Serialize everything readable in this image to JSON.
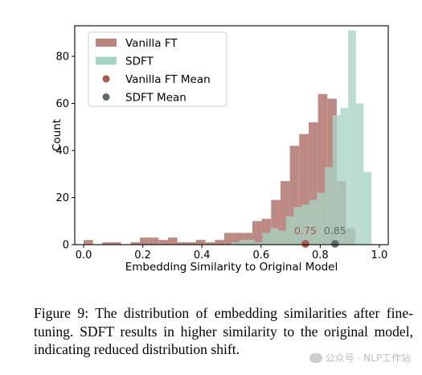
{
  "chart_data": {
    "type": "histogram",
    "xlabel": "Embedding Similarity to Original Model",
    "ylabel": "Count",
    "xlim": [
      -0.03,
      1.03
    ],
    "ylim": [
      0,
      93
    ],
    "xticks": [
      0.0,
      0.2,
      0.4,
      0.6,
      0.8,
      1.0
    ],
    "xtick_labels": [
      "0.0",
      "0.2",
      "0.4",
      "0.6",
      "0.8",
      "1.0"
    ],
    "yticks": [
      0,
      20,
      40,
      60,
      80
    ],
    "ytick_labels": [
      "0",
      "20",
      "40",
      "60",
      "80"
    ],
    "legend_position": "top-left",
    "legend": [
      {
        "label": "Vanilla FT",
        "marker": "patch",
        "color": "#b9847c"
      },
      {
        "label": "SDFT",
        "marker": "patch",
        "color": "#a8d4c4"
      },
      {
        "label": "Vanilla FT Mean",
        "marker": "dot",
        "color": "#a75a4f"
      },
      {
        "label": "SDFT Mean",
        "marker": "dot",
        "color": "#5e6b6a"
      }
    ],
    "series": [
      {
        "name": "Vanilla FT",
        "color": "#b9847c",
        "bin_edges": [
          0.0,
          0.0317,
          0.0634,
          0.0951,
          0.1268,
          0.1585,
          0.1902,
          0.2219,
          0.2536,
          0.2853,
          0.317,
          0.3487,
          0.3804,
          0.4121,
          0.4438,
          0.4755,
          0.5072,
          0.5389,
          0.5706,
          0.6023,
          0.634,
          0.6657,
          0.6974,
          0.7291,
          0.7608,
          0.7925,
          0.8242,
          0.8559,
          0.8876,
          0.9193
        ],
        "counts": [
          2,
          0,
          1,
          1,
          0,
          1,
          3,
          3,
          2,
          3,
          1,
          1,
          2,
          1,
          2,
          5,
          5,
          5,
          10,
          11,
          19,
          27,
          42,
          47,
          52,
          64,
          62,
          27,
          7
        ]
      },
      {
        "name": "SDFT",
        "color": "#a8d4c4",
        "bin_edges": [
          0.5,
          0.5263,
          0.5526,
          0.5789,
          0.6052,
          0.6315,
          0.6578,
          0.6841,
          0.7104,
          0.7367,
          0.763,
          0.7893,
          0.8156,
          0.8419,
          0.8682,
          0.8945,
          0.9208,
          0.9471,
          0.9734
        ],
        "counts": [
          1,
          2,
          2,
          1,
          5,
          7,
          6,
          12,
          16,
          17,
          19,
          22,
          33,
          55,
          58,
          91,
          60,
          31
        ]
      }
    ],
    "mean_markers": [
      {
        "name": "Vanilla FT Mean",
        "x": 0.75,
        "label": "0.75",
        "color": "#a75a4f"
      },
      {
        "name": "SDFT Mean",
        "x": 0.85,
        "label": "0.85",
        "color": "#5e6b6a"
      }
    ]
  },
  "caption": "Figure 9: The distribution of embedding similarities after fine-tuning. SDFT results in higher similarity to the original model, indicating reduced distribution shift.",
  "watermark": "公众号 · NLP工作站"
}
